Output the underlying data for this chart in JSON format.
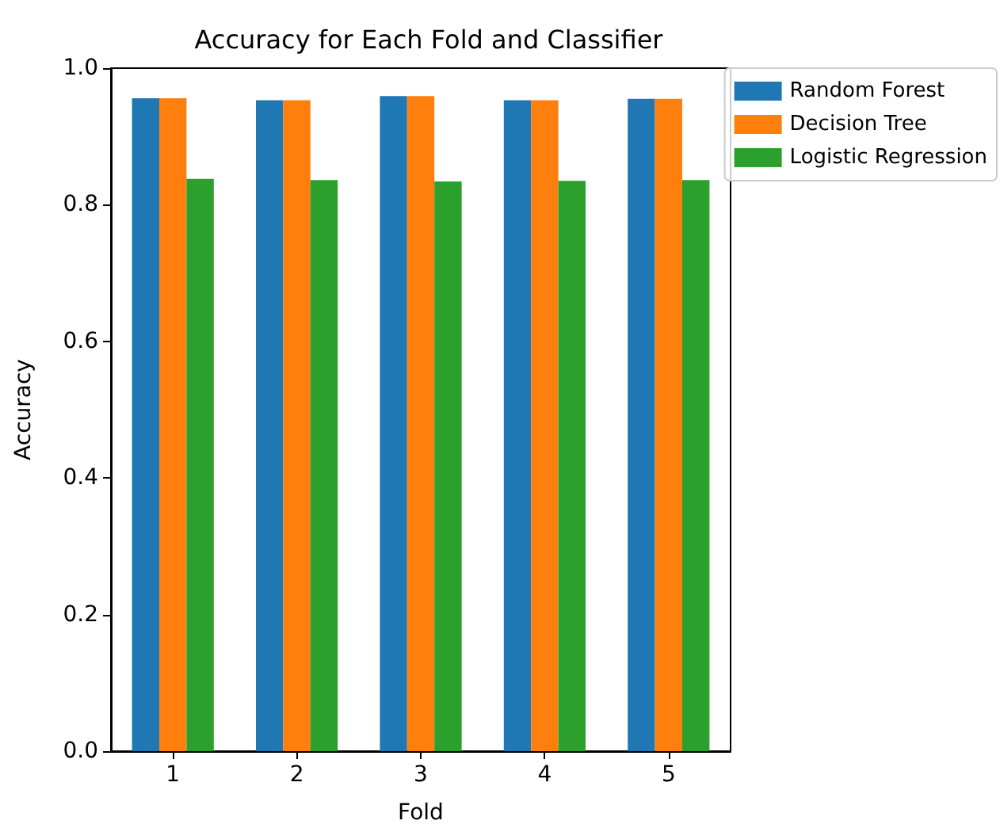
{
  "chart_data": {
    "type": "bar",
    "title": "Accuracy for Each Fold and Classifier",
    "xlabel": "Fold",
    "ylabel": "Accuracy",
    "categories": [
      "1",
      "2",
      "3",
      "4",
      "5"
    ],
    "series": [
      {
        "name": "Random Forest",
        "color": "#1f77b4",
        "values": [
          0.956,
          0.953,
          0.959,
          0.953,
          0.955
        ]
      },
      {
        "name": "Decision Tree",
        "color": "#ff7f0e",
        "values": [
          0.956,
          0.953,
          0.959,
          0.953,
          0.955
        ]
      },
      {
        "name": "Logistic Regression",
        "color": "#2ca02c",
        "values": [
          0.838,
          0.836,
          0.834,
          0.835,
          0.836
        ]
      }
    ],
    "ylim": [
      0,
      1.0
    ],
    "yticks": [
      {
        "value": 0,
        "label": "0.0"
      },
      {
        "value": 0.2,
        "label": "0.2"
      },
      {
        "value": 0.4,
        "label": "0.4"
      },
      {
        "value": 0.6,
        "label": "0.6"
      },
      {
        "value": 0.8,
        "label": "0.8"
      },
      {
        "value": 1.0,
        "label": "1.0"
      }
    ],
    "grid": false,
    "legend": "right"
  }
}
